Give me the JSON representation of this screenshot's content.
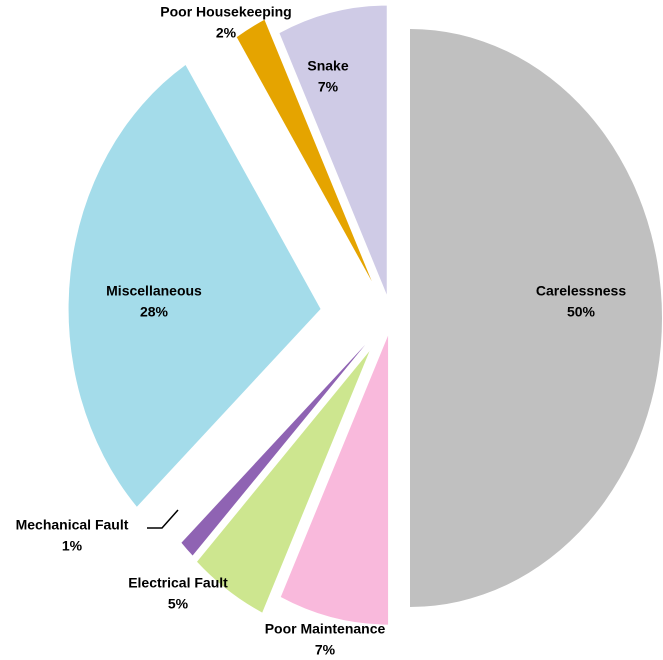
{
  "chart_data": {
    "type": "pie",
    "categories": [
      "Carelessness",
      "Poor Maintenance",
      "Electrical Fault",
      "Mechanical Fault",
      "Miscellaneous",
      "Poor Housekeeping",
      "Snake"
    ],
    "values": [
      50,
      7,
      5,
      1,
      28,
      2,
      7
    ],
    "value_labels": [
      "50%",
      "7%",
      "5%",
      "1%",
      "28%",
      "2%",
      "7%"
    ],
    "colors": [
      "#c0c0c0",
      "#f9b9dc",
      "#cde68f",
      "#8f63b3",
      "#a4dcea",
      "#e5a400",
      "#cfcbe6"
    ]
  }
}
